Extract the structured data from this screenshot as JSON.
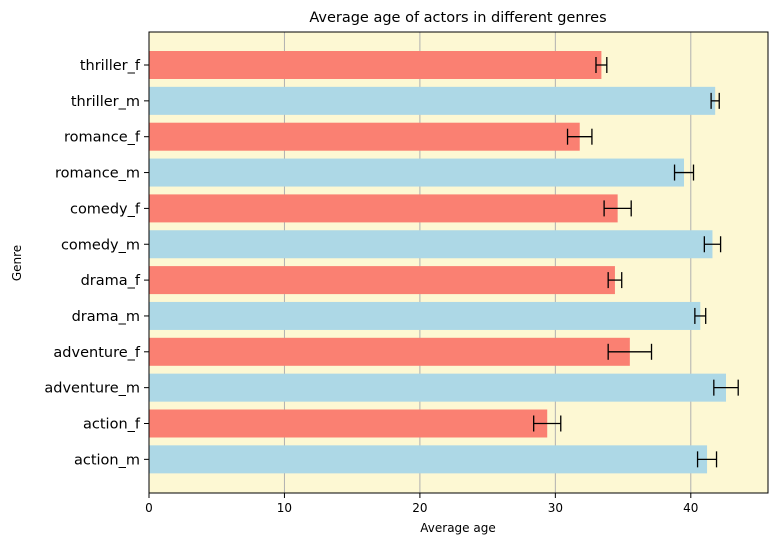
{
  "chart_data": {
    "type": "bar",
    "orientation": "horizontal",
    "title": "Average age of actors in different genres",
    "xlabel": "Average age",
    "ylabel": "Genre",
    "xlim": [
      0,
      45.7
    ],
    "xticks": [
      0,
      10,
      20,
      30,
      40
    ],
    "grid": "vertical",
    "background_color": "#fdf8d3",
    "categories": [
      "thriller_f",
      "thriller_m",
      "romance_f",
      "romance_m",
      "comedy_f",
      "comedy_m",
      "drama_f",
      "drama_m",
      "adventure_f",
      "adventure_m",
      "action_f",
      "action_m"
    ],
    "values": [
      33.4,
      41.8,
      31.8,
      39.5,
      34.6,
      41.6,
      34.4,
      40.7,
      35.5,
      42.6,
      29.4,
      41.2
    ],
    "errors": [
      0.4,
      0.3,
      0.9,
      0.7,
      1.0,
      0.6,
      0.5,
      0.4,
      1.6,
      0.9,
      1.0,
      0.7
    ],
    "colors": [
      "#fa8072",
      "#add8e6",
      "#fa8072",
      "#add8e6",
      "#fa8072",
      "#add8e6",
      "#fa8072",
      "#add8e6",
      "#fa8072",
      "#add8e6",
      "#fa8072",
      "#add8e6"
    ]
  }
}
